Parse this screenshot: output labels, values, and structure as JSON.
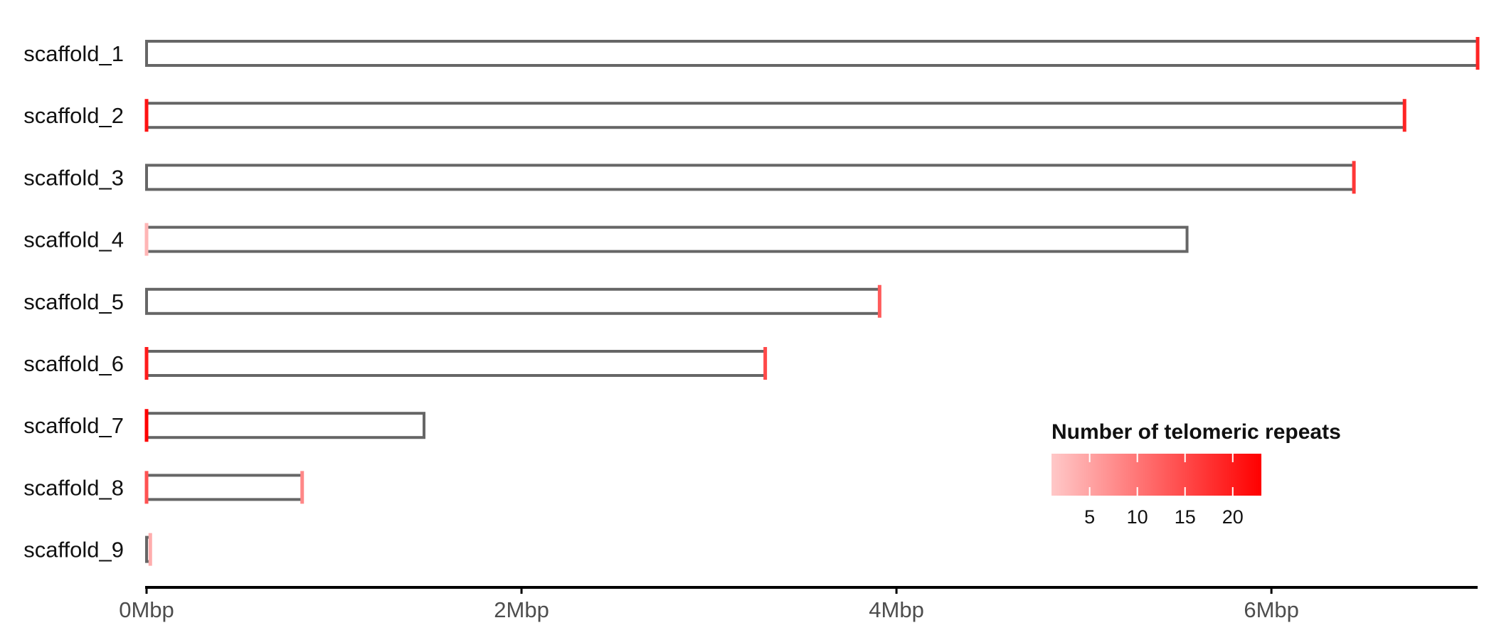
{
  "chart_data": {
    "type": "bar",
    "categories": [
      "scaffold_1",
      "scaffold_2",
      "scaffold_3",
      "scaffold_4",
      "scaffold_5",
      "scaffold_6",
      "scaffold_7",
      "scaffold_8",
      "scaffold_9"
    ],
    "unit": "bp",
    "xlim": [
      0,
      7100000
    ],
    "xticks": [
      {
        "value": 0,
        "label": "0Mbp"
      },
      {
        "value": 2000000,
        "label": "2Mbp"
      },
      {
        "value": 4000000,
        "label": "4Mbp"
      },
      {
        "value": 6000000,
        "label": "6Mbp"
      }
    ],
    "scaffolds": [
      {
        "name": "scaffold_1",
        "length": 7100000,
        "telomeres": [
          {
            "pos": 7100000,
            "repeats": 19
          }
        ]
      },
      {
        "name": "scaffold_2",
        "length": 6710000,
        "telomeres": [
          {
            "pos": 0,
            "repeats": 21
          },
          {
            "pos": 6710000,
            "repeats": 19
          }
        ]
      },
      {
        "name": "scaffold_3",
        "length": 6440000,
        "telomeres": [
          {
            "pos": 6440000,
            "repeats": 17
          }
        ]
      },
      {
        "name": "scaffold_4",
        "length": 5550000,
        "telomeres": [
          {
            "pos": 0,
            "repeats": 3
          }
        ]
      },
      {
        "name": "scaffold_5",
        "length": 3910000,
        "telomeres": [
          {
            "pos": 3910000,
            "repeats": 13
          }
        ]
      },
      {
        "name": "scaffold_6",
        "length": 3300000,
        "telomeres": [
          {
            "pos": 0,
            "repeats": 20
          },
          {
            "pos": 3300000,
            "repeats": 15
          }
        ]
      },
      {
        "name": "scaffold_7",
        "length": 1480000,
        "telomeres": [
          {
            "pos": 0,
            "repeats": 23
          }
        ]
      },
      {
        "name": "scaffold_8",
        "length": 830000,
        "telomeres": [
          {
            "pos": 0,
            "repeats": 14
          },
          {
            "pos": 830000,
            "repeats": 8
          }
        ]
      },
      {
        "name": "scaffold_9",
        "length": 20000,
        "telomeres": [
          {
            "pos": 20000,
            "repeats": 4
          }
        ]
      }
    ],
    "bar_outline_color": "#666666",
    "legend": {
      "title": "Number of telomeric repeats",
      "placement": "bottom-right",
      "range": [
        1,
        23
      ],
      "color_low": "#ffc8c8",
      "color_high": "#ff0000",
      "ticks": [
        5,
        10,
        15,
        20
      ]
    },
    "grid": false
  }
}
